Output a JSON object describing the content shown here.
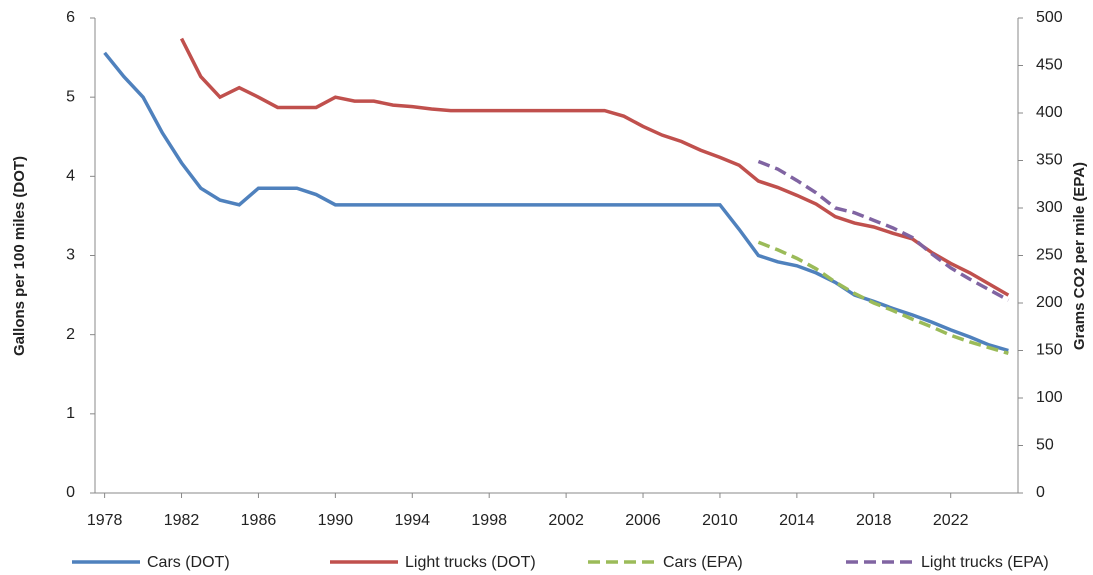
{
  "chart_data": {
    "type": "line",
    "y_label": "Gallons per 100 miles (DOT)",
    "y2_label": "Grams CO2 per mile (EPA)",
    "x": [
      1978,
      1979,
      1980,
      1981,
      1982,
      1983,
      1984,
      1985,
      1986,
      1987,
      1988,
      1989,
      1990,
      1991,
      1992,
      1993,
      1994,
      1995,
      1996,
      1997,
      1998,
      1999,
      2000,
      2001,
      2002,
      2003,
      2004,
      2005,
      2006,
      2007,
      2008,
      2009,
      2010,
      2011,
      2012,
      2013,
      2014,
      2015,
      2016,
      2017,
      2018,
      2019,
      2020,
      2021,
      2022,
      2023,
      2024,
      2025
    ],
    "xlim": [
      1977.5,
      2025.5
    ],
    "xticks": [
      1978,
      1982,
      1986,
      1990,
      1994,
      1998,
      2002,
      2006,
      2010,
      2014,
      2018,
      2022
    ],
    "ylim": [
      0,
      6
    ],
    "yticks": [
      0,
      1,
      2,
      3,
      4,
      5,
      6
    ],
    "y2lim": [
      0,
      500
    ],
    "y2ticks": [
      0,
      50,
      100,
      150,
      200,
      250,
      300,
      350,
      400,
      450,
      500
    ],
    "series": [
      {
        "name": "Cars (DOT)",
        "color": "#4f81bd",
        "dashed": false,
        "values": [
          5.56,
          5.26,
          5.0,
          4.55,
          4.17,
          3.85,
          3.7,
          3.64,
          3.85,
          3.85,
          3.85,
          3.77,
          3.64,
          3.64,
          3.64,
          3.64,
          3.64,
          3.64,
          3.64,
          3.64,
          3.64,
          3.64,
          3.64,
          3.64,
          3.64,
          3.64,
          3.64,
          3.64,
          3.64,
          3.64,
          3.64,
          3.64,
          3.64,
          3.33,
          3.0,
          2.92,
          2.87,
          2.78,
          2.66,
          2.5,
          2.42,
          2.33,
          2.25,
          2.16,
          2.06,
          1.97,
          1.87,
          1.8
        ]
      },
      {
        "name": "Light trucks (DOT)",
        "color": "#c0504d",
        "dashed": false,
        "values": [
          null,
          null,
          null,
          null,
          5.74,
          5.26,
          5.0,
          5.12,
          5.0,
          4.87,
          4.87,
          4.87,
          5.0,
          4.95,
          4.95,
          4.9,
          4.88,
          4.85,
          4.83,
          4.83,
          4.83,
          4.83,
          4.83,
          4.83,
          4.83,
          4.83,
          4.83,
          4.76,
          4.63,
          4.52,
          4.44,
          4.33,
          4.24,
          4.14,
          3.94,
          3.86,
          3.76,
          3.65,
          3.49,
          3.41,
          3.36,
          3.28,
          3.21,
          3.04,
          2.9,
          2.78,
          2.64,
          2.5
        ]
      },
      {
        "name": "Cars (EPA)",
        "color": "#9bbb59",
        "dashed": true,
        "axis": "y2",
        "values": [
          null,
          null,
          null,
          null,
          null,
          null,
          null,
          null,
          null,
          null,
          null,
          null,
          null,
          null,
          null,
          null,
          null,
          null,
          null,
          null,
          null,
          null,
          null,
          null,
          null,
          null,
          null,
          null,
          null,
          null,
          null,
          null,
          null,
          null,
          264,
          256,
          247,
          236,
          222,
          210,
          200,
          192,
          183,
          175,
          166,
          159,
          153,
          147
        ]
      },
      {
        "name": "Light trucks (EPA)",
        "color": "#8064a2",
        "dashed": true,
        "axis": "y2",
        "values": [
          null,
          null,
          null,
          null,
          null,
          null,
          null,
          null,
          null,
          null,
          null,
          null,
          null,
          null,
          null,
          null,
          null,
          null,
          null,
          null,
          null,
          null,
          null,
          null,
          null,
          null,
          null,
          null,
          null,
          null,
          null,
          null,
          null,
          null,
          349,
          341,
          329,
          316,
          300,
          295,
          287,
          279,
          269,
          252,
          237,
          225,
          214,
          203
        ]
      }
    ]
  }
}
